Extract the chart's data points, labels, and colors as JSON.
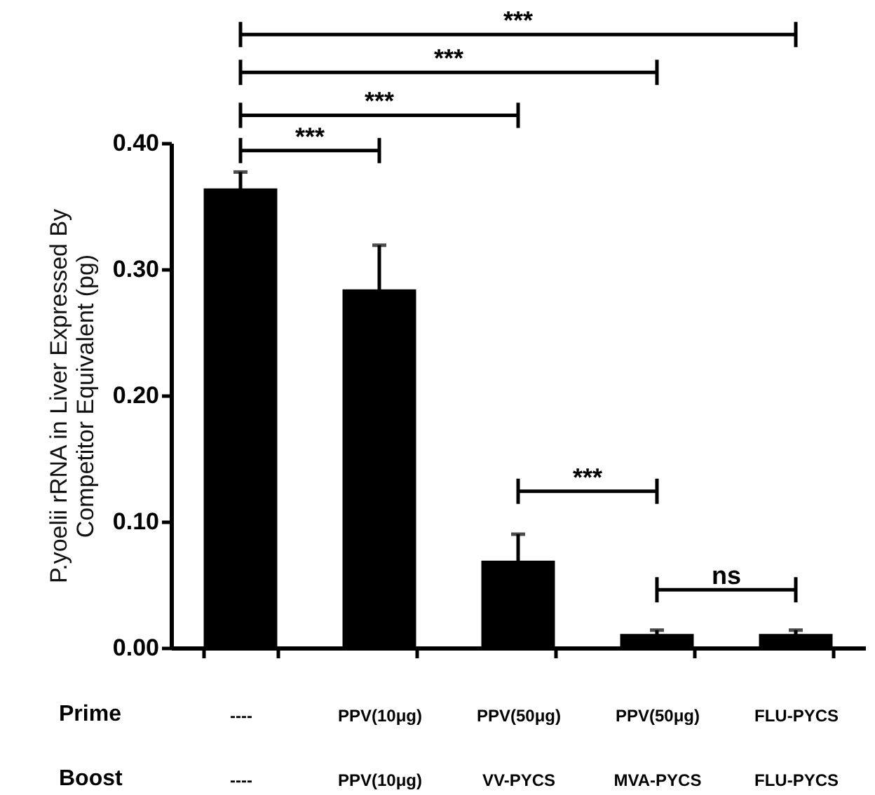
{
  "chart_data": {
    "type": "bar",
    "ylabel": "P.yoelii rRNA in Liver Expressed By Competitor Equivalent (pg)",
    "categories": [
      "----\n----",
      "PPV(10μg)\nPPV(10μg)",
      "PPV(50μg)\nVV-PYCS",
      "PPV(50μg)\nMVA-PYCS",
      "FLU-PYCS\nFLU-PYCS"
    ],
    "values": [
      0.364,
      0.284,
      0.069,
      0.011,
      0.011
    ],
    "errors": [
      0.013,
      0.035,
      0.021,
      0.003,
      0.003
    ],
    "color": "#000000",
    "ylim": [
      0,
      0.4
    ],
    "yticks": [
      {
        "value": 0,
        "label": "0.00"
      },
      {
        "value": 0.1,
        "label": "0.10"
      },
      {
        "value": 0.2,
        "label": "0.20"
      },
      {
        "value": 0.3,
        "label": "0.30"
      },
      {
        "value": 0.4,
        "label": "0.40"
      }
    ],
    "annotations": [
      "Prime",
      "Boost",
      "***",
      "***",
      "***",
      "***",
      "***",
      "ns"
    ],
    "grid": false
  }
}
